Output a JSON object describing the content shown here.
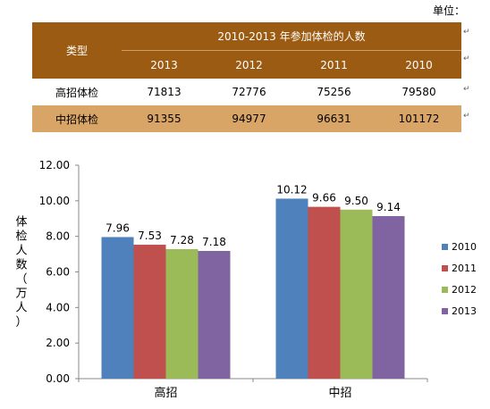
{
  "unit_label": "单位：",
  "table": {
    "type_header": "类型",
    "title": "2010-2013 年参加体检的人数",
    "years": [
      "2013",
      "2012",
      "2011",
      "2010"
    ],
    "rows": [
      {
        "name": "高招体检",
        "values": [
          "71813",
          "72776",
          "75256",
          "79580"
        ]
      },
      {
        "name": "中招体检",
        "values": [
          "91355",
          "94977",
          "96631",
          "101172"
        ]
      }
    ]
  },
  "paragraph_mark": "↵",
  "colors": {
    "header_bg": "#9c5b12",
    "highlight_row_bg": "#d9a567",
    "series": [
      "#4f81bd",
      "#c0504d",
      "#9bbb59",
      "#8064a2"
    ]
  },
  "chart_data": {
    "type": "bar",
    "categories": [
      "高招",
      "中招"
    ],
    "series": [
      {
        "name": "2010",
        "values": [
          7.96,
          10.12
        ]
      },
      {
        "name": "2011",
        "values": [
          7.53,
          9.66
        ]
      },
      {
        "name": "2012",
        "values": [
          7.28,
          9.5
        ]
      },
      {
        "name": "2013",
        "values": [
          7.18,
          9.14
        ]
      }
    ],
    "data_labels": [
      [
        "7.96",
        "10.12"
      ],
      [
        "7.53",
        "9.66"
      ],
      [
        "7.28",
        "9.50"
      ],
      [
        "7.18",
        "9.14"
      ]
    ],
    "ylabel": "体检人数（万人）",
    "ylim": [
      0,
      12
    ],
    "yticks": [
      "0.00",
      "2.00",
      "4.00",
      "6.00",
      "8.00",
      "10.00",
      "12.00"
    ],
    "legend_position": "right",
    "grid": false
  }
}
